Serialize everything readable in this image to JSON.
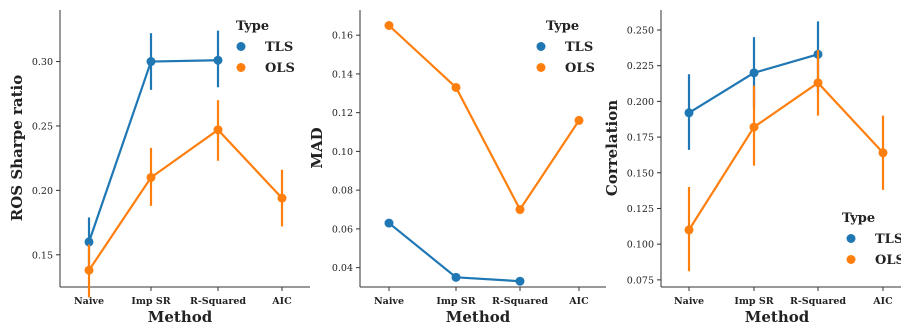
{
  "colors": {
    "TLS": "#1f77b4",
    "OLS": "#ff7f0e"
  },
  "chart_data": [
    {
      "type": "line",
      "categories": [
        "Naive",
        "Imp SR",
        "R-Squared",
        "AIC"
      ],
      "xlabel": "Method",
      "ylabel": "ROS Sharpe ratio",
      "ylim": [
        0.125,
        0.34
      ],
      "yticks": [
        0.15,
        0.2,
        0.25,
        0.3
      ],
      "ytick_labels": [
        "0.15",
        "0.20",
        "0.25",
        "0.30"
      ],
      "legend": {
        "title": "Type",
        "position": "top-right",
        "entries": [
          "TLS",
          "OLS"
        ]
      },
      "series": [
        {
          "name": "TLS",
          "values": [
            0.16,
            0.3,
            0.301,
            null
          ],
          "err_low": [
            0.141,
            0.278,
            0.28,
            null
          ],
          "err_high": [
            0.179,
            0.322,
            0.324,
            null
          ]
        },
        {
          "name": "OLS",
          "values": [
            0.138,
            0.21,
            0.247,
            0.194
          ],
          "err_low": [
            0.117,
            0.188,
            0.223,
            0.172
          ],
          "err_high": [
            0.158,
            0.233,
            0.27,
            0.216
          ]
        }
      ]
    },
    {
      "type": "line",
      "categories": [
        "Naive",
        "Imp SR",
        "R-Squared",
        "AIC"
      ],
      "xlabel": "Method",
      "ylabel": "MAD",
      "ylim": [
        0.03,
        0.173
      ],
      "yticks": [
        0.04,
        0.06,
        0.08,
        0.1,
        0.12,
        0.14,
        0.16
      ],
      "ytick_labels": [
        "0.04",
        "0.06",
        "0.08",
        "0.10",
        "0.12",
        "0.14",
        "0.16"
      ],
      "legend": {
        "title": "Type",
        "position": "top-right",
        "entries": [
          "TLS",
          "OLS"
        ]
      },
      "series": [
        {
          "name": "TLS",
          "values": [
            0.063,
            0.035,
            0.033,
            null
          ],
          "err_low": [
            0.062,
            0.034,
            0.032,
            null
          ],
          "err_high": [
            0.064,
            0.036,
            0.034,
            null
          ]
        },
        {
          "name": "OLS",
          "values": [
            0.165,
            0.133,
            0.07,
            0.116
          ],
          "err_low": [
            0.164,
            0.132,
            0.069,
            0.115
          ],
          "err_high": [
            0.166,
            0.134,
            0.071,
            0.118
          ]
        }
      ]
    },
    {
      "type": "line",
      "categories": [
        "Naive",
        "Imp SR",
        "R-Squared",
        "AIC"
      ],
      "xlabel": "Method",
      "ylabel": "Correlation",
      "ylim": [
        0.07,
        0.264
      ],
      "yticks": [
        0.075,
        0.1,
        0.125,
        0.15,
        0.175,
        0.2,
        0.225,
        0.25
      ],
      "ytick_labels": [
        "0.075",
        "0.100",
        "0.125",
        "0.150",
        "0.175",
        "0.200",
        "0.225",
        "0.250"
      ],
      "legend": {
        "title": "Type",
        "position": "lower-right",
        "entries": [
          "TLS",
          "OLS"
        ]
      },
      "series": [
        {
          "name": "TLS",
          "values": [
            0.192,
            0.22,
            0.233,
            null
          ],
          "err_low": [
            0.166,
            0.196,
            0.206,
            null
          ],
          "err_high": [
            0.219,
            0.245,
            0.256,
            null
          ]
        },
        {
          "name": "OLS",
          "values": [
            0.11,
            0.182,
            0.213,
            0.164
          ],
          "err_low": [
            0.081,
            0.155,
            0.19,
            0.138
          ],
          "err_high": [
            0.14,
            0.211,
            0.236,
            0.19
          ]
        }
      ]
    }
  ]
}
